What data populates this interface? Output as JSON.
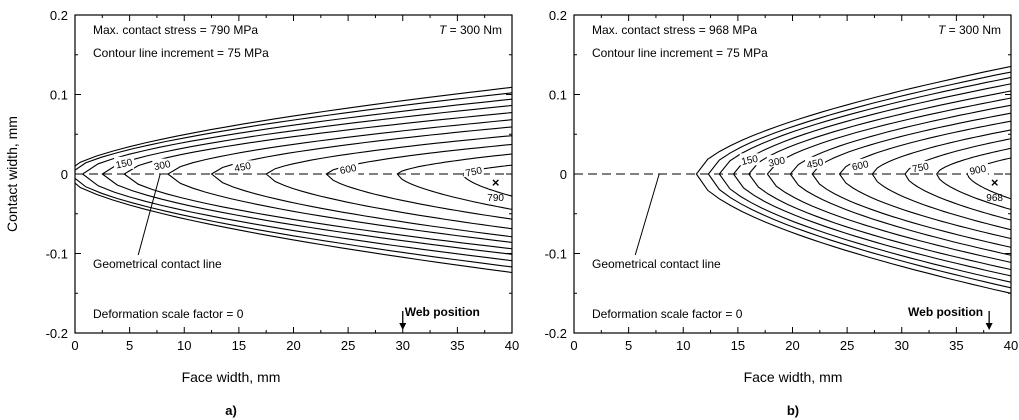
{
  "colors": {
    "line": "#000000",
    "background": "#ffffff"
  },
  "shared": {
    "ylabel": "Contact width, mm",
    "xlabel": "Face width, mm",
    "x_ticks": [
      0,
      5,
      10,
      15,
      20,
      25,
      30,
      35,
      40
    ],
    "y_ticks": [
      0.2,
      0.1,
      0,
      -0.1,
      -0.2
    ],
    "y_tick_labels": [
      "0.2",
      "0.1",
      "0",
      "-0.1",
      "-0.2"
    ]
  },
  "chart_data": [
    {
      "type": "contour",
      "panel_label": "a)",
      "xlabel": "Face width, mm",
      "ylabel": "Contact width, mm",
      "xlim": [
        0,
        40
      ],
      "ylim": [
        -0.2,
        0.2
      ],
      "annotations": {
        "max_stress": "Max. contact stress = 790 MPa",
        "increment": "Contour line increment = 75 MPa",
        "torque_var": "T",
        "torque_rest": " = 300 Nm",
        "contact_line": "Geometrical contact line",
        "deformation": "Deformation scale factor = 0",
        "web": "Web position",
        "max_value": "790"
      },
      "max_point": {
        "x": 38.5,
        "y": -0.01
      },
      "web_position_x": 30,
      "contact_line_x": 7.8,
      "contour_increment": 75,
      "contours": [
        {
          "level": 0,
          "x_left": -1,
          "top": 0.11,
          "bottom": -0.125
        },
        {
          "level": 75,
          "x_left": -0.5,
          "top": 0.103,
          "bottom": -0.118
        },
        {
          "level": 150,
          "x_left": 0.7,
          "top": 0.095,
          "bottom": -0.11,
          "label": "150"
        },
        {
          "level": 225,
          "x_left": 2.5,
          "top": 0.087,
          "bottom": -0.102
        },
        {
          "level": 300,
          "x_left": 4.5,
          "top": 0.078,
          "bottom": -0.095,
          "label": "300"
        },
        {
          "level": 375,
          "x_left": 8.5,
          "top": 0.069,
          "bottom": -0.087
        },
        {
          "level": 450,
          "x_left": 12.5,
          "top": 0.06,
          "bottom": -0.08,
          "label": "450"
        },
        {
          "level": 525,
          "x_left": 17.5,
          "top": 0.049,
          "bottom": -0.07
        },
        {
          "level": 600,
          "x_left": 23.0,
          "top": 0.038,
          "bottom": -0.058,
          "label": "600"
        },
        {
          "level": 675,
          "x_left": 29.5,
          "top": 0.026,
          "bottom": -0.046
        },
        {
          "level": 750,
          "x_left": 35.5,
          "top": 0.012,
          "bottom": -0.03,
          "label": "750"
        }
      ]
    },
    {
      "type": "contour",
      "panel_label": "b)",
      "xlabel": "Face width, mm",
      "ylabel": "",
      "xlim": [
        0,
        40
      ],
      "ylim": [
        -0.2,
        0.2
      ],
      "annotations": {
        "max_stress": "Max. contact stress = 968 MPa",
        "increment": "Contour line increment = 75 MPa",
        "torque_var": "T",
        "torque_rest": " = 300 Nm",
        "contact_line": "Geometrical contact line",
        "deformation": "Deformation scale factor = 0",
        "web": "Web position",
        "max_value": "968"
      },
      "max_point": {
        "x": 38.5,
        "y": -0.01
      },
      "web_position_x": 38,
      "contact_line_x": 7.8,
      "contour_increment": 75,
      "contours": [
        {
          "level": 0,
          "x_left": 11.2,
          "top": 0.137,
          "bottom": -0.152
        },
        {
          "level": 75,
          "x_left": 12.3,
          "top": 0.13,
          "bottom": -0.145
        },
        {
          "level": 150,
          "x_left": 13.3,
          "top": 0.123,
          "bottom": -0.138,
          "label": "150"
        },
        {
          "level": 225,
          "x_left": 14.6,
          "top": 0.115,
          "bottom": -0.13
        },
        {
          "level": 300,
          "x_left": 16.0,
          "top": 0.106,
          "bottom": -0.122,
          "label": "300"
        },
        {
          "level": 375,
          "x_left": 17.7,
          "top": 0.097,
          "bottom": -0.113
        },
        {
          "level": 450,
          "x_left": 19.8,
          "top": 0.088,
          "bottom": -0.104,
          "label": "450"
        },
        {
          "level": 525,
          "x_left": 21.8,
          "top": 0.078,
          "bottom": -0.094
        },
        {
          "level": 600,
          "x_left": 24.3,
          "top": 0.068,
          "bottom": -0.083,
          "label": "600"
        },
        {
          "level": 675,
          "x_left": 27.3,
          "top": 0.057,
          "bottom": -0.072
        },
        {
          "level": 750,
          "x_left": 30.3,
          "top": 0.046,
          "bottom": -0.06,
          "label": "750"
        },
        {
          "level": 825,
          "x_left": 33.2,
          "top": 0.034,
          "bottom": -0.047
        },
        {
          "level": 900,
          "x_left": 36.0,
          "top": 0.022,
          "bottom": -0.034,
          "label": "900"
        }
      ]
    }
  ]
}
